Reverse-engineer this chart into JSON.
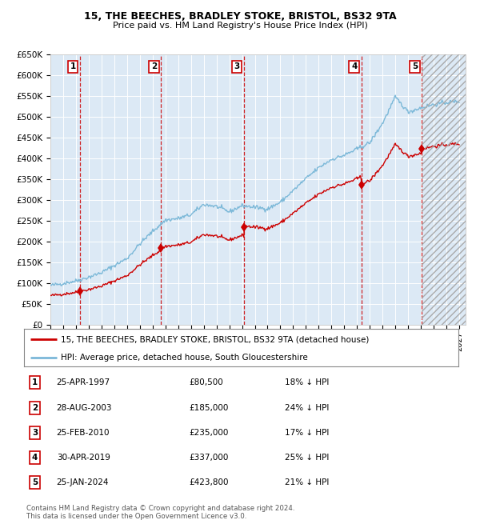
{
  "title1": "15, THE BEECHES, BRADLEY STOKE, BRISTOL, BS32 9TA",
  "title2": "Price paid vs. HM Land Registry's House Price Index (HPI)",
  "ylim": [
    0,
    650000
  ],
  "yticks": [
    0,
    50000,
    100000,
    150000,
    200000,
    250000,
    300000,
    350000,
    400000,
    450000,
    500000,
    550000,
    600000,
    650000
  ],
  "xlim_start": 1995.0,
  "xlim_end": 2027.5,
  "bg_color": "#dce9f5",
  "hpi_color": "#7bb8d8",
  "price_color": "#cc0000",
  "transactions": [
    {
      "num": 1,
      "date_str": "25-APR-1997",
      "date_x": 1997.32,
      "price": 80500,
      "pct": "18%",
      "dir": "↓"
    },
    {
      "num": 2,
      "date_str": "28-AUG-2003",
      "date_x": 2003.66,
      "price": 185000,
      "pct": "24%",
      "dir": "↓"
    },
    {
      "num": 3,
      "date_str": "25-FEB-2010",
      "date_x": 2010.15,
      "price": 235000,
      "pct": "17%",
      "dir": "↓"
    },
    {
      "num": 4,
      "date_str": "30-APR-2019",
      "date_x": 2019.33,
      "price": 337000,
      "pct": "25%",
      "dir": "↓"
    },
    {
      "num": 5,
      "date_str": "25-JAN-2024",
      "date_x": 2024.07,
      "price": 423800,
      "pct": "21%",
      "dir": "↓"
    }
  ],
  "legend_line1": "15, THE BEECHES, BRADLEY STOKE, BRISTOL, BS32 9TA (detached house)",
  "legend_line2": "HPI: Average price, detached house, South Gloucestershire",
  "footnote1": "Contains HM Land Registry data © Crown copyright and database right 2024.",
  "footnote2": "This data is licensed under the Open Government Licence v3.0.",
  "hpi_base_vals": {
    "1995": 95000,
    "1996": 100000,
    "1997": 106000,
    "1998": 115000,
    "1999": 126000,
    "2000": 143000,
    "2001": 160000,
    "2002": 195000,
    "2003": 225000,
    "2004": 252000,
    "2005": 256000,
    "2006": 265000,
    "2007": 290000,
    "2008": 285000,
    "2009": 272000,
    "2010": 287000,
    "2011": 283000,
    "2012": 279000,
    "2013": 295000,
    "2014": 323000,
    "2015": 352000,
    "2016": 378000,
    "2017": 398000,
    "2018": 408000,
    "2019": 423000,
    "2020": 438000,
    "2021": 485000,
    "2022": 548000,
    "2023": 512000,
    "2024": 522000,
    "2025": 530000,
    "2026": 535000,
    "2027": 538000
  }
}
